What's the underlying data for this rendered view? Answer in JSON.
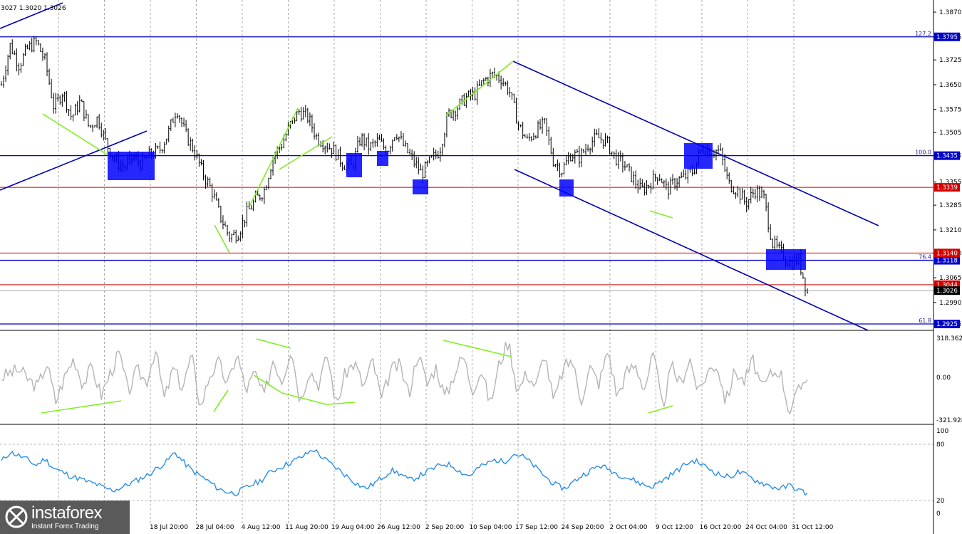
{
  "header": {
    "ohlc": "3027 1.3020 1.3026"
  },
  "logo": {
    "name": "instaforex",
    "tagline": "Instant Forex Trading"
  },
  "colors": {
    "background": "#ffffff",
    "candles": "#000000",
    "support_resistance": "#0000c8",
    "red_level": "#d40000",
    "trend_channel": "#0000b4",
    "divergence": "#80ee20",
    "zone_box": "#0000ff",
    "cci_line": "#b4b4b4",
    "rsi_line": "#2a8ee6",
    "grid": "#000000"
  },
  "chart_data": [
    {
      "type": "candlestick",
      "name": "price",
      "y_ticks": [
        "1.3870",
        "1.3795",
        "1.3725",
        "1.3650",
        "1.3575",
        "1.3505",
        "1.3435",
        "1.3355",
        "1.3285",
        "1.3210",
        "1.3140",
        "1.3065",
        "1.2990",
        "1.2925"
      ],
      "ylim": [
        1.291,
        1.389
      ],
      "x_ticks": [
        "18 Jul 20:00",
        "28 Jul 04:00",
        "4 Aug 12:00",
        "11 Aug 20:00",
        "19 Aug 04:00",
        "26 Aug 12:00",
        "2 Sep 20:00",
        "10 Sep 04:00",
        "17 Sep 12:00",
        "24 Sep 20:00",
        "2 Oct 04:00",
        "9 Oct 12:00",
        "16 Oct 20:00",
        "24 Oct 04:00",
        "31 Oct 12:00"
      ],
      "close_path": [
        1.365,
        1.377,
        1.371,
        1.376,
        1.378,
        1.372,
        1.358,
        1.363,
        1.355,
        1.36,
        1.352,
        1.355,
        1.347,
        1.342,
        1.34,
        1.343,
        1.341,
        1.344,
        1.345,
        1.35,
        1.358,
        1.35,
        1.345,
        1.338,
        1.333,
        1.325,
        1.319,
        1.32,
        1.326,
        1.33,
        1.333,
        1.343,
        1.347,
        1.353,
        1.357,
        1.355,
        1.349,
        1.347,
        1.345,
        1.341,
        1.34,
        1.349,
        1.346,
        1.348,
        1.345,
        1.351,
        1.346,
        1.342,
        1.338,
        1.342,
        1.345,
        1.356,
        1.358,
        1.361,
        1.362,
        1.366,
        1.368,
        1.367,
        1.363,
        1.353,
        1.348,
        1.351,
        1.353,
        1.342,
        1.339,
        1.344,
        1.343,
        1.347,
        1.349,
        1.348,
        1.343,
        1.341,
        1.337,
        1.333,
        1.335,
        1.338,
        1.333,
        1.336,
        1.337,
        1.339,
        1.346,
        1.345,
        1.345,
        1.335,
        1.333,
        1.329,
        1.333,
        1.331,
        1.317,
        1.314,
        1.311,
        1.312,
        1.302
      ],
      "highlight_range": [
        1.2985,
        1.388
      ],
      "red_levels": [
        {
          "value": 1.3339,
          "label": "1.3339"
        },
        {
          "value": 1.314,
          "label": "1.3140"
        },
        {
          "value": 1.3044,
          "label": "1.3044"
        }
      ],
      "blue_levels": [
        {
          "value": 1.3795,
          "label": "1.3795",
          "fib": "127.2"
        },
        {
          "value": 1.3435,
          "label": "1.3435",
          "fib": "100.0"
        },
        {
          "value": 1.3118,
          "label": "1.3118",
          "fib": "76.4"
        },
        {
          "value": 1.2925,
          "label": "1.2925",
          "fib": "61.8"
        }
      ],
      "current_price": {
        "value": 1.3026,
        "label": "1.3026"
      }
    },
    {
      "type": "line",
      "name": "cci",
      "y_ticks": [
        "318.3625",
        "0.00",
        "-321.9280"
      ],
      "ylim": [
        -340,
        340
      ],
      "values": [
        0,
        40,
        60,
        -20,
        -80,
        120,
        -200,
        10,
        160,
        -60,
        90,
        -150,
        30,
        200,
        -120,
        60,
        -40,
        230,
        -180,
        80,
        -90,
        180,
        -250,
        20,
        120,
        -70,
        200,
        -110,
        40,
        -160,
        150,
        -30,
        250,
        -200,
        70,
        -60,
        180,
        -230,
        40,
        120,
        -80,
        140,
        -190,
        60,
        100,
        -140,
        210,
        -60,
        90,
        -170,
        30,
        180,
        -100,
        60,
        -220,
        120,
        300,
        -120,
        40,
        -80,
        200,
        -210,
        60,
        150,
        -190,
        80,
        -50,
        230,
        -160,
        40,
        100,
        -90,
        190,
        -250,
        90,
        -60,
        160,
        -130,
        50,
        110,
        -200,
        60,
        -40,
        140,
        -100,
        30,
        60,
        -280,
        -120,
        30
      ]
    },
    {
      "type": "line",
      "name": "rsi",
      "y_ticks": [
        "100",
        "80",
        "20",
        "0"
      ],
      "ylim": [
        0,
        100
      ],
      "values": [
        63,
        74,
        70,
        65,
        58,
        66,
        55,
        50,
        45,
        42,
        38,
        35,
        30,
        28,
        32,
        37,
        42,
        47,
        55,
        62,
        74,
        62,
        52,
        45,
        38,
        30,
        26,
        24,
        30,
        35,
        40,
        50,
        55,
        60,
        65,
        70,
        78,
        68,
        60,
        52,
        44,
        36,
        30,
        36,
        44,
        52,
        48,
        40,
        44,
        50,
        55,
        60,
        58,
        50,
        45,
        55,
        60,
        65,
        62,
        72,
        70,
        62,
        52,
        42,
        34,
        30,
        38,
        46,
        52,
        58,
        54,
        48,
        44,
        40,
        35,
        32,
        38,
        45,
        52,
        60,
        64,
        58,
        52,
        46,
        44,
        50,
        46,
        40,
        36,
        32,
        30,
        34,
        28,
        24
      ]
    }
  ]
}
